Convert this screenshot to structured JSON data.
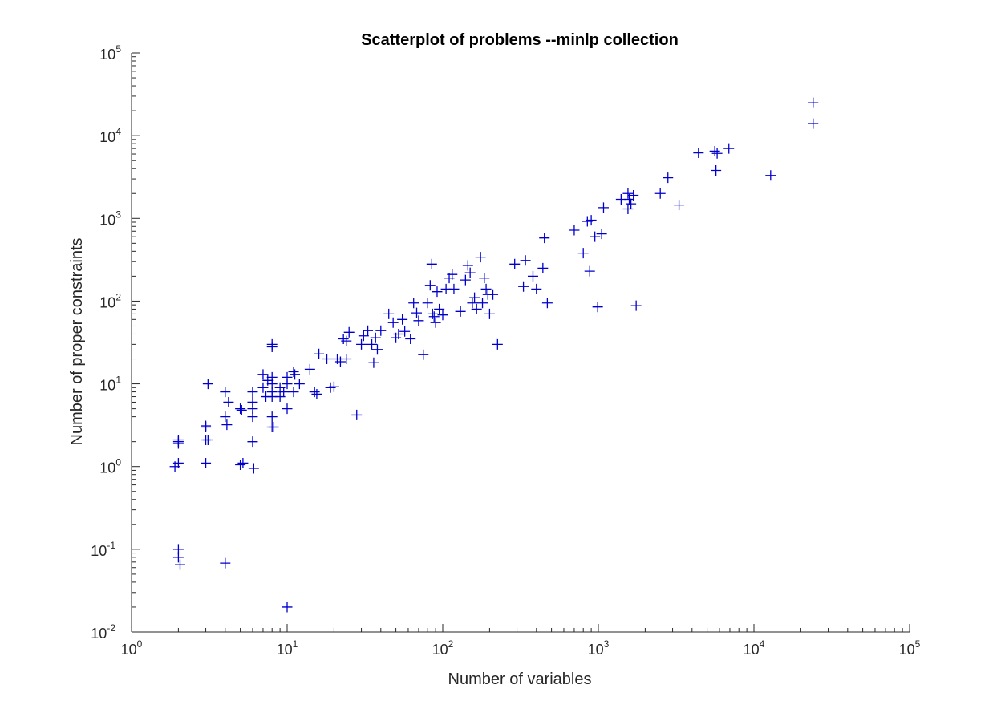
{
  "chart_data": {
    "type": "scatter",
    "title": "Scatterplot of problems --minlp collection",
    "xlabel": "Number of variables",
    "ylabel": "Number of proper constraints",
    "xscale": "log",
    "yscale": "log",
    "xlim": [
      1,
      100000
    ],
    "ylim": [
      0.01,
      100000
    ],
    "x_ticks": [
      {
        "base": "10",
        "exp": "0"
      },
      {
        "base": "10",
        "exp": "1"
      },
      {
        "base": "10",
        "exp": "2"
      },
      {
        "base": "10",
        "exp": "3"
      },
      {
        "base": "10",
        "exp": "4"
      },
      {
        "base": "10",
        "exp": "5"
      }
    ],
    "y_ticks": [
      {
        "base": "10",
        "exp": "-2"
      },
      {
        "base": "10",
        "exp": "-1"
      },
      {
        "base": "10",
        "exp": "0"
      },
      {
        "base": "10",
        "exp": "1"
      },
      {
        "base": "10",
        "exp": "2"
      },
      {
        "base": "10",
        "exp": "3"
      },
      {
        "base": "10",
        "exp": "4"
      },
      {
        "base": "10",
        "exp": "5"
      }
    ],
    "marker": "+",
    "color": "#0000cc",
    "grid": false,
    "series": [
      {
        "name": "problems",
        "points": [
          [
            2,
            2
          ],
          [
            2,
            1.9
          ],
          [
            2,
            2.1
          ],
          [
            2,
            1.1
          ],
          [
            1.9,
            1.0
          ],
          [
            2,
            0.1
          ],
          [
            2,
            0.08
          ],
          [
            2.05,
            0.065
          ],
          [
            3,
            3
          ],
          [
            3,
            3.1
          ],
          [
            3,
            2.1
          ],
          [
            3.1,
            2.1
          ],
          [
            3,
            1.1
          ],
          [
            3.1,
            10
          ],
          [
            4,
            8
          ],
          [
            4,
            4
          ],
          [
            4.1,
            3.2
          ],
          [
            4,
            0.068
          ],
          [
            4.2,
            6
          ],
          [
            5,
            5
          ],
          [
            5.1,
            4.8
          ],
          [
            5,
            1.05
          ],
          [
            5.2,
            1.1
          ],
          [
            6,
            8
          ],
          [
            6,
            6
          ],
          [
            6,
            5
          ],
          [
            6,
            4
          ],
          [
            6,
            2
          ],
          [
            6.1,
            0.95
          ],
          [
            7,
            13
          ],
          [
            7,
            9
          ],
          [
            7.3,
            7
          ],
          [
            7.5,
            11
          ],
          [
            8,
            30
          ],
          [
            8,
            28
          ],
          [
            8,
            12
          ],
          [
            8,
            10
          ],
          [
            8,
            8
          ],
          [
            8,
            7
          ],
          [
            8,
            4
          ],
          [
            8,
            3
          ],
          [
            8.2,
            3
          ],
          [
            9,
            9
          ],
          [
            9,
            7
          ],
          [
            9.5,
            8
          ],
          [
            10,
            12
          ],
          [
            10,
            10
          ],
          [
            10,
            5
          ],
          [
            10,
            0.02
          ],
          [
            11,
            14
          ],
          [
            11,
            8
          ],
          [
            11.2,
            13
          ],
          [
            12,
            10
          ],
          [
            14,
            15
          ],
          [
            15,
            8
          ],
          [
            15.5,
            7.5
          ],
          [
            16,
            23
          ],
          [
            18,
            20
          ],
          [
            19,
            9
          ],
          [
            20,
            9.2
          ],
          [
            21,
            20
          ],
          [
            22,
            18.5
          ],
          [
            23,
            35
          ],
          [
            24,
            33
          ],
          [
            24,
            20
          ],
          [
            25,
            42
          ],
          [
            28,
            4.2
          ],
          [
            30,
            30
          ],
          [
            31,
            38
          ],
          [
            33,
            44
          ],
          [
            35,
            30
          ],
          [
            36,
            18
          ],
          [
            37,
            36
          ],
          [
            38,
            26
          ],
          [
            40,
            44
          ],
          [
            45,
            70
          ],
          [
            48,
            55
          ],
          [
            50,
            36
          ],
          [
            52,
            40
          ],
          [
            55,
            60
          ],
          [
            57,
            43
          ],
          [
            62,
            35
          ],
          [
            65,
            95
          ],
          [
            68,
            72
          ],
          [
            70,
            58
          ],
          [
            75,
            22.5
          ],
          [
            80,
            95
          ],
          [
            83,
            155
          ],
          [
            85,
            280
          ],
          [
            86,
            70
          ],
          [
            88,
            65
          ],
          [
            90,
            55
          ],
          [
            92,
            130
          ],
          [
            95,
            80
          ],
          [
            100,
            68
          ],
          [
            105,
            140
          ],
          [
            110,
            190
          ],
          [
            115,
            210
          ],
          [
            118,
            140
          ],
          [
            130,
            75
          ],
          [
            140,
            180
          ],
          [
            145,
            270
          ],
          [
            150,
            220
          ],
          [
            155,
            95
          ],
          [
            160,
            110
          ],
          [
            165,
            80
          ],
          [
            175,
            340
          ],
          [
            180,
            95
          ],
          [
            185,
            190
          ],
          [
            190,
            140
          ],
          [
            195,
            120
          ],
          [
            200,
            70
          ],
          [
            210,
            120
          ],
          [
            225,
            30
          ],
          [
            290,
            280
          ],
          [
            330,
            150
          ],
          [
            340,
            310
          ],
          [
            380,
            200
          ],
          [
            400,
            140
          ],
          [
            440,
            250
          ],
          [
            450,
            580
          ],
          [
            470,
            95
          ],
          [
            700,
            720
          ],
          [
            800,
            380
          ],
          [
            850,
            920
          ],
          [
            880,
            230
          ],
          [
            900,
            950
          ],
          [
            950,
            600
          ],
          [
            990,
            85
          ],
          [
            1050,
            650
          ],
          [
            1080,
            1350
          ],
          [
            1400,
            1700
          ],
          [
            1550,
            2000
          ],
          [
            1550,
            1300
          ],
          [
            1580,
            1700
          ],
          [
            1620,
            1500
          ],
          [
            1680,
            1900
          ],
          [
            1750,
            88
          ],
          [
            2500,
            2000
          ],
          [
            2800,
            3100
          ],
          [
            3300,
            1450
          ],
          [
            4400,
            6200
          ],
          [
            5600,
            6500
          ],
          [
            5700,
            3800
          ],
          [
            5800,
            6100
          ],
          [
            6900,
            7000
          ],
          [
            12800,
            3300
          ],
          [
            24000,
            25000
          ],
          [
            24000,
            14000
          ]
        ]
      }
    ]
  }
}
